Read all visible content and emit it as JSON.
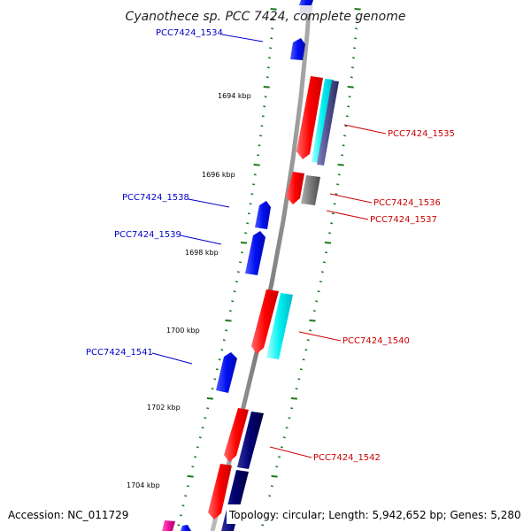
{
  "title": "Cyanothece sp. PCC 7424, complete genome",
  "footer": {
    "accession": "Accession: NC_011729",
    "topology": "Topology: circular; Length: 5,942,652 bp; Genes: 5,280"
  },
  "colors": {
    "backbone": "#888888",
    "tick": "#1a7a1a",
    "forward_label": "#0000cc",
    "reverse_label": "#cc0000",
    "forward_gene": "#0a14e6",
    "reverse_gene": "#ee1111",
    "cyan_feature": "#00e8e8",
    "navy_feature": "#000070",
    "slate_feature": "#4a4a8a",
    "gray_feature": "#707070",
    "magenta_feature": "#ee1199"
  },
  "scale_labels": [
    "1694 kbp",
    "1696 kbp",
    "1698 kbp",
    "1700 kbp",
    "1702 kbp",
    "1704 kbp"
  ],
  "gene_labels": {
    "forward": [
      "PCC7424_1534",
      "PCC7424_1538",
      "PCC7424_1539",
      "PCC7424_1541"
    ],
    "reverse": [
      "PCC7424_1535",
      "PCC7424_1536",
      "PCC7424_1537",
      "PCC7424_1540",
      "PCC7424_1542"
    ]
  }
}
